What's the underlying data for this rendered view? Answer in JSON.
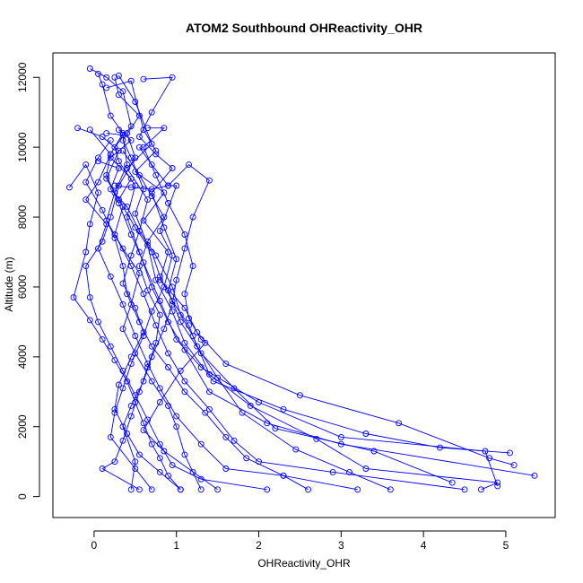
{
  "chart_data": {
    "type": "scatter",
    "title": "ATOM2 Southbound OHReactivity_OHR",
    "xlabel": "OHReactivity_OHR",
    "ylabel": "Altitude (m)",
    "xlim": [
      -0.5,
      5.6
    ],
    "ylim": [
      -600,
      12700
    ],
    "xticks": [
      0,
      1,
      2,
      3,
      4,
      5
    ],
    "yticks": [
      0,
      2000,
      4000,
      6000,
      8000,
      10000,
      12000
    ],
    "series_color": "#0000ff",
    "marker": "open-circle",
    "lines": true,
    "profiles": [
      [
        [
          -0.05,
          12250
        ],
        [
          0.15,
          12000
        ],
        [
          0.35,
          11600
        ],
        [
          0.45,
          10600
        ],
        [
          0.25,
          10000
        ],
        [
          0.3,
          9600
        ],
        [
          0.5,
          8900
        ],
        [
          0.4,
          8000
        ],
        [
          0.55,
          7000
        ],
        [
          0.7,
          6000
        ],
        [
          0.9,
          5000
        ],
        [
          1.1,
          4200
        ],
        [
          1.4,
          3000
        ],
        [
          2.1,
          2100
        ],
        [
          3.0,
          1500
        ],
        [
          5.35,
          600
        ]
      ],
      [
        [
          0.05,
          12100
        ],
        [
          0.1,
          11800
        ],
        [
          0.2,
          10900
        ],
        [
          0.35,
          10400
        ],
        [
          0.2,
          9800
        ],
        [
          0.15,
          9200
        ],
        [
          0.3,
          8400
        ],
        [
          0.45,
          7500
        ],
        [
          0.6,
          6700
        ],
        [
          0.8,
          5600
        ],
        [
          1.0,
          4500
        ],
        [
          1.3,
          3700
        ],
        [
          2.0,
          2700
        ],
        [
          3.0,
          1700
        ],
        [
          4.75,
          1300
        ],
        [
          4.9,
          300
        ]
      ],
      [
        [
          0.25,
          12000
        ],
        [
          0.3,
          11500
        ],
        [
          0.55,
          10900
        ],
        [
          0.35,
          10200
        ],
        [
          0.45,
          9700
        ],
        [
          0.6,
          8800
        ],
        [
          0.5,
          8100
        ],
        [
          0.65,
          7200
        ],
        [
          0.75,
          6200
        ],
        [
          0.95,
          5300
        ],
        [
          1.1,
          4400
        ],
        [
          1.45,
          3300
        ],
        [
          2.3,
          2500
        ],
        [
          3.3,
          1800
        ],
        [
          4.2,
          1400
        ],
        [
          5.05,
          1250
        ]
      ],
      [
        [
          0.15,
          11700
        ],
        [
          0.45,
          11900
        ],
        [
          0.6,
          10500
        ],
        [
          0.75,
          9900
        ],
        [
          0.5,
          9300
        ],
        [
          0.85,
          8700
        ],
        [
          0.6,
          7900
        ],
        [
          0.9,
          7000
        ],
        [
          0.8,
          6200
        ],
        [
          1.1,
          5400
        ],
        [
          1.25,
          4700
        ],
        [
          1.6,
          3800
        ],
        [
          2.5,
          2900
        ],
        [
          3.7,
          2100
        ],
        [
          4.8,
          1100
        ],
        [
          5.1,
          900
        ]
      ],
      [
        [
          0.3,
          12050
        ],
        [
          0.5,
          11300
        ],
        [
          0.7,
          10100
        ],
        [
          0.4,
          9400
        ],
        [
          0.65,
          8500
        ],
        [
          0.55,
          7600
        ],
        [
          0.75,
          6900
        ],
        [
          0.95,
          6000
        ],
        [
          1.05,
          5200
        ],
        [
          1.2,
          4600
        ],
        [
          1.4,
          3500
        ],
        [
          1.9,
          2600
        ],
        [
          2.7,
          1650
        ],
        [
          3.3,
          800
        ],
        [
          4.9,
          400
        ],
        [
          4.7,
          200
        ]
      ],
      [
        [
          0.6,
          11950
        ],
        [
          0.95,
          12000
        ],
        [
          0.7,
          11000
        ],
        [
          0.55,
          10300
        ],
        [
          0.75,
          9800
        ],
        [
          0.95,
          9400
        ],
        [
          0.7,
          8700
        ],
        [
          0.85,
          7700
        ],
        [
          1.0,
          6800
        ],
        [
          0.9,
          5900
        ],
        [
          1.05,
          5000
        ],
        [
          1.3,
          4100
        ],
        [
          1.7,
          3100
        ],
        [
          2.2,
          1950
        ],
        [
          3.4,
          1300
        ],
        [
          4.35,
          400
        ]
      ],
      [
        [
          -0.2,
          10550
        ],
        [
          0.1,
          10300
        ],
        [
          0.3,
          9900
        ],
        [
          0.15,
          9100
        ],
        [
          0.35,
          8300
        ],
        [
          0.25,
          7500
        ],
        [
          0.45,
          6600
        ],
        [
          0.6,
          5800
        ],
        [
          0.75,
          4900
        ],
        [
          0.9,
          4100
        ],
        [
          1.1,
          3300
        ],
        [
          1.4,
          2500
        ],
        [
          1.7,
          1600
        ],
        [
          2.0,
          1000
        ],
        [
          2.9,
          700
        ],
        [
          4.5,
          200
        ]
      ],
      [
        [
          -0.05,
          10500
        ],
        [
          0.2,
          9800
        ],
        [
          0.05,
          9000
        ],
        [
          -0.1,
          8500
        ],
        [
          0.15,
          7800
        ],
        [
          0.05,
          7100
        ],
        [
          0.2,
          6300
        ],
        [
          0.35,
          5500
        ],
        [
          0.5,
          4600
        ],
        [
          0.65,
          3800
        ],
        [
          0.8,
          3100
        ],
        [
          1.0,
          2300
        ],
        [
          1.3,
          1500
        ],
        [
          1.6,
          800
        ],
        [
          2.3,
          600
        ],
        [
          3.2,
          200
        ]
      ],
      [
        [
          0.4,
          10400
        ],
        [
          0.5,
          9700
        ],
        [
          0.3,
          8900
        ],
        [
          0.2,
          8000
        ],
        [
          0.1,
          7300
        ],
        [
          -0.1,
          6600
        ],
        [
          -0.05,
          5700
        ],
        [
          0.05,
          5000
        ],
        [
          0.2,
          4300
        ],
        [
          0.35,
          3600
        ],
        [
          0.5,
          2900
        ],
        [
          0.65,
          2200
        ],
        [
          0.8,
          1500
        ],
        [
          0.95,
          900
        ],
        [
          1.3,
          500
        ],
        [
          2.1,
          200
        ]
      ],
      [
        [
          0.55,
          10000
        ],
        [
          0.7,
          9500
        ],
        [
          0.9,
          8900
        ],
        [
          1.15,
          9500
        ],
        [
          1.4,
          9050
        ],
        [
          1.2,
          8000
        ],
        [
          1.1,
          7100
        ],
        [
          1.0,
          6200
        ],
        [
          0.95,
          5500
        ],
        [
          0.85,
          4800
        ],
        [
          0.7,
          4000
        ],
        [
          0.6,
          3300
        ],
        [
          0.45,
          2600
        ],
        [
          0.35,
          2000
        ],
        [
          0.5,
          1000
        ],
        [
          0.45,
          200
        ]
      ],
      [
        [
          -0.3,
          8850
        ],
        [
          -0.1,
          9500
        ],
        [
          0.05,
          8700
        ],
        [
          -0.05,
          7800
        ],
        [
          -0.1,
          7000
        ],
        [
          -0.25,
          5700
        ],
        [
          -0.05,
          5050
        ],
        [
          0.1,
          4500
        ],
        [
          0.25,
          3900
        ],
        [
          0.4,
          3300
        ],
        [
          0.5,
          2700
        ],
        [
          0.6,
          2100
        ],
        [
          0.7,
          1500
        ],
        [
          0.8,
          1100
        ],
        [
          0.9,
          600
        ],
        [
          1.05,
          200
        ]
      ],
      [
        [
          0.3,
          10500
        ],
        [
          0.45,
          10200
        ],
        [
          0.2,
          9700
        ],
        [
          0.45,
          9100
        ],
        [
          0.3,
          8500
        ],
        [
          0.5,
          7700
        ],
        [
          0.7,
          7000
        ],
        [
          0.8,
          6300
        ],
        [
          0.95,
          5600
        ],
        [
          1.15,
          4900
        ],
        [
          1.25,
          4300
        ],
        [
          1.5,
          3400
        ],
        [
          1.8,
          2400
        ],
        [
          2.45,
          1350
        ],
        [
          3.1,
          700
        ],
        [
          3.6,
          200
        ]
      ],
      [
        [
          0.65,
          10550
        ],
        [
          0.85,
          10550
        ],
        [
          0.6,
          10000
        ],
        [
          0.75,
          9200
        ],
        [
          0.9,
          8400
        ],
        [
          1.1,
          7500
        ],
        [
          1.2,
          6600
        ],
        [
          1.1,
          5800
        ],
        [
          1.15,
          5100
        ],
        [
          1.3,
          4500
        ],
        [
          1.35,
          4400
        ],
        [
          1.05,
          3600
        ],
        [
          0.8,
          2700
        ],
        [
          0.6,
          1900
        ],
        [
          0.85,
          1300
        ],
        [
          1.5,
          200
        ]
      ],
      [
        [
          0.2,
          10200
        ],
        [
          0.05,
          9700
        ],
        [
          -0.1,
          9000
        ],
        [
          0.1,
          8200
        ],
        [
          0.25,
          7400
        ],
        [
          0.35,
          6600
        ],
        [
          0.4,
          5800
        ],
        [
          0.55,
          5000
        ],
        [
          0.7,
          4300
        ],
        [
          0.9,
          3700
        ],
        [
          1.1,
          3000
        ],
        [
          1.35,
          2400
        ],
        [
          1.6,
          1700
        ],
        [
          1.85,
          1100
        ],
        [
          2.3,
          600
        ],
        [
          2.6,
          200
        ]
      ],
      [
        [
          0.35,
          9900
        ],
        [
          0.55,
          9200
        ],
        [
          0.7,
          8600
        ],
        [
          0.85,
          8000
        ],
        [
          0.65,
          7300
        ],
        [
          0.55,
          6600
        ],
        [
          0.65,
          5900
        ],
        [
          0.8,
          5200
        ],
        [
          0.75,
          4400
        ],
        [
          0.65,
          3700
        ],
        [
          0.55,
          3000
        ],
        [
          0.45,
          2300
        ],
        [
          0.35,
          1600
        ],
        [
          0.25,
          1000
        ],
        [
          0.1,
          800
        ],
        [
          0.55,
          200
        ]
      ],
      [
        [
          0.25,
          8900
        ],
        [
          0.45,
          8850
        ],
        [
          0.7,
          8800
        ],
        [
          0.9,
          8900
        ],
        [
          1.0,
          8900
        ],
        [
          0.8,
          7600
        ],
        [
          0.95,
          6900
        ],
        [
          0.85,
          6000
        ],
        [
          0.7,
          5300
        ],
        [
          0.6,
          4600
        ],
        [
          0.45,
          3800
        ],
        [
          0.35,
          3100
        ],
        [
          0.25,
          2400
        ],
        [
          0.2,
          1700
        ],
        [
          0.5,
          800
        ],
        [
          0.7,
          200
        ]
      ],
      [
        [
          0.05,
          9600
        ],
        [
          0.3,
          9400
        ],
        [
          0.2,
          8800
        ],
        [
          0.4,
          8300
        ],
        [
          0.55,
          7600
        ],
        [
          0.45,
          6900
        ],
        [
          0.35,
          6100
        ],
        [
          0.5,
          5400
        ],
        [
          0.6,
          4700
        ],
        [
          0.45,
          4000
        ],
        [
          0.3,
          3200
        ],
        [
          0.25,
          2500
        ],
        [
          0.4,
          1800
        ],
        [
          0.55,
          1200
        ],
        [
          0.8,
          700
        ],
        [
          1.05,
          200
        ]
      ],
      [
        [
          0.15,
          10400
        ],
        [
          0.35,
          10350
        ],
        [
          0.4,
          9500
        ],
        [
          0.25,
          8700
        ],
        [
          0.15,
          7900
        ],
        [
          0.35,
          7100
        ],
        [
          0.55,
          6400
        ],
        [
          0.45,
          5500
        ],
        [
          0.35,
          4800
        ],
        [
          0.5,
          4100
        ],
        [
          0.7,
          3300
        ],
        [
          0.9,
          2600
        ],
        [
          1.0,
          2000
        ],
        [
          1.1,
          1200
        ],
        [
          1.2,
          700
        ],
        [
          1.3,
          200
        ]
      ]
    ]
  }
}
